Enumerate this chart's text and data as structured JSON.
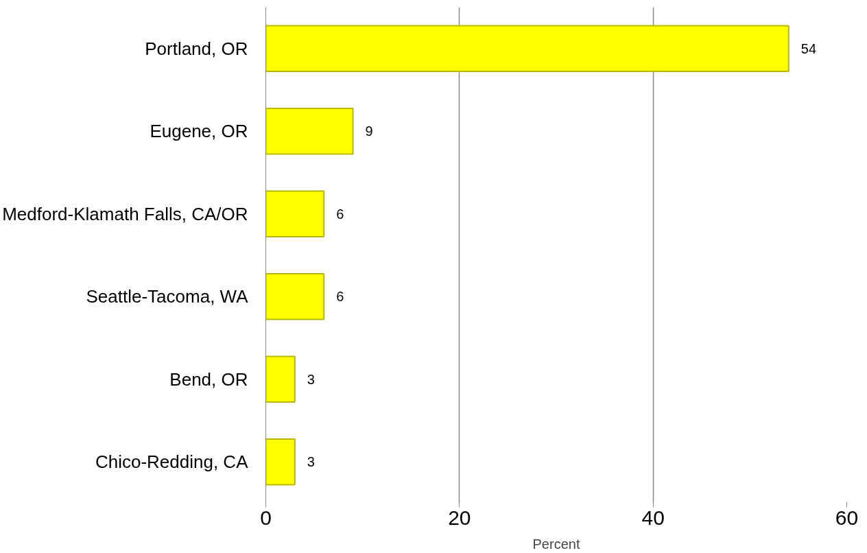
{
  "chart_data": {
    "type": "bar",
    "orientation": "horizontal",
    "xlabel": "Percent",
    "categories": [
      "Portland, OR",
      "Eugene, OR",
      "Medford-Klamath Falls, CA/OR",
      "Seattle-Tacoma, WA",
      "Bend, OR",
      "Chico-Redding, CA"
    ],
    "values": [
      54,
      9,
      6,
      6,
      3,
      3
    ],
    "color": "#ffff00",
    "xlim": [
      0,
      60
    ],
    "xticks": [
      0,
      20,
      40,
      60
    ],
    "grid": "x",
    "data_labels": true
  }
}
